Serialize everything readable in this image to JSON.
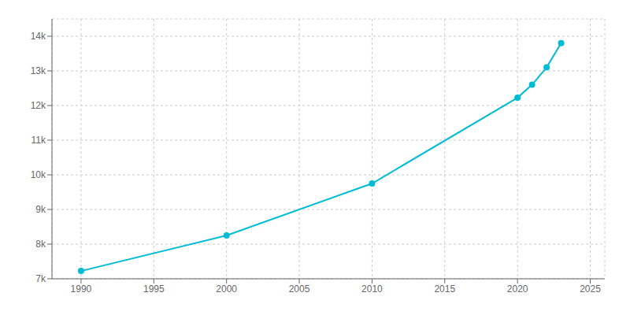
{
  "chart_data": {
    "type": "line",
    "x": [
      1990,
      2000,
      2010,
      2020,
      2021,
      2022,
      2023
    ],
    "values": [
      7225,
      8250,
      9750,
      12225,
      12600,
      13100,
      13800
    ],
    "color": "#00BCD4",
    "marker": "circle",
    "xlim": [
      1988,
      2026
    ],
    "xticks": [
      1990,
      1995,
      2000,
      2005,
      2010,
      2015,
      2020,
      2025
    ],
    "ylim": [
      7000,
      14500
    ],
    "yticks": [
      {
        "value": 7000,
        "label": "7k"
      },
      {
        "value": 8000,
        "label": "8k"
      },
      {
        "value": 9000,
        "label": "9k"
      },
      {
        "value": 10000,
        "label": "10k"
      },
      {
        "value": 11000,
        "label": "11k"
      },
      {
        "value": 12000,
        "label": "12k"
      },
      {
        "value": 13000,
        "label": "13k"
      },
      {
        "value": 14000,
        "label": "14k"
      }
    ],
    "grid": true
  }
}
